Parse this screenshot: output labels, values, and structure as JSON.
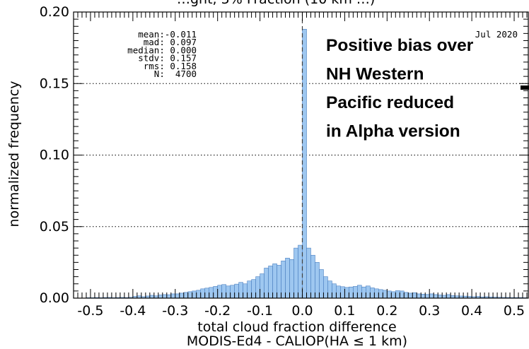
{
  "chart_data": {
    "type": "bar",
    "title_partial": "…ght, 5%  Fraction  (10  km …)",
    "date": "Jul 2020",
    "xlabel": "total cloud fraction difference",
    "xlabel2": "MODIS-Ed4 - CALIOP(HA ≤ 1 km)",
    "ylabel": "normalized frequency",
    "xlim": [
      -0.54,
      0.535
    ],
    "ylim": [
      0,
      0.2
    ],
    "grid": "horizontal dotted at 0.05, 0.10, 0.15",
    "bin_width": 0.01,
    "x_ticks": [
      {
        "v": -0.5,
        "label": "-0.5"
      },
      {
        "v": -0.4,
        "label": "-0.4"
      },
      {
        "v": -0.3,
        "label": "-0.3"
      },
      {
        "v": -0.2,
        "label": "-0.2"
      },
      {
        "v": -0.1,
        "label": "-0.1"
      },
      {
        "v": 0.0,
        "label": "0.0"
      },
      {
        "v": 0.1,
        "label": "0.1"
      },
      {
        "v": 0.2,
        "label": "0.2"
      },
      {
        "v": 0.3,
        "label": "0.3"
      },
      {
        "v": 0.4,
        "label": "0.4"
      },
      {
        "v": 0.5,
        "label": "0.5"
      }
    ],
    "y_ticks": [
      {
        "v": 0.0,
        "label": "0.00"
      },
      {
        "v": 0.05,
        "label": "0.05"
      },
      {
        "v": 0.1,
        "label": "0.10"
      },
      {
        "v": 0.15,
        "label": "0.15"
      },
      {
        "v": 0.2,
        "label": "0.20"
      }
    ],
    "stats": [
      "   mean:-0.011",
      "    mad: 0.097",
      " median: 0.000",
      "   stdv: 0.157",
      "    rms: 0.158",
      "      N:  4700"
    ],
    "annotation": [
      "Positive bias over",
      "NH Western",
      "Pacific reduced",
      "in Alpha version"
    ],
    "bin_centers": [
      -0.505,
      -0.495,
      -0.485,
      -0.475,
      -0.465,
      -0.455,
      -0.445,
      -0.435,
      -0.425,
      -0.415,
      -0.405,
      -0.395,
      -0.385,
      -0.375,
      -0.365,
      -0.355,
      -0.345,
      -0.335,
      -0.325,
      -0.315,
      -0.305,
      -0.295,
      -0.285,
      -0.275,
      -0.265,
      -0.255,
      -0.245,
      -0.235,
      -0.225,
      -0.215,
      -0.205,
      -0.195,
      -0.185,
      -0.175,
      -0.165,
      -0.155,
      -0.145,
      -0.135,
      -0.125,
      -0.115,
      -0.105,
      -0.095,
      -0.085,
      -0.075,
      -0.065,
      -0.055,
      -0.045,
      -0.035,
      -0.025,
      -0.015,
      -0.005,
      0.005,
      0.015,
      0.025,
      0.035,
      0.045,
      0.055,
      0.065,
      0.075,
      0.085,
      0.095,
      0.105,
      0.115,
      0.125,
      0.135,
      0.145,
      0.155,
      0.165,
      0.175,
      0.185,
      0.195,
      0.205,
      0.215,
      0.225,
      0.235,
      0.245,
      0.255,
      0.265,
      0.275,
      0.285,
      0.295,
      0.305,
      0.315,
      0.325,
      0.335,
      0.345,
      0.355,
      0.365,
      0.375,
      0.385,
      0.395,
      0.405,
      0.415,
      0.425,
      0.435,
      0.445,
      0.455,
      0.465,
      0.475,
      0.485,
      0.495,
      0.505,
      0.515,
      0.525
    ],
    "values": [
      0.0003,
      0.0003,
      0.0004,
      0.0003,
      0.0004,
      0.0005,
      0.0003,
      0.0004,
      0.0005,
      0.0004,
      0.0006,
      0.0012,
      0.0016,
      0.001,
      0.0015,
      0.002,
      0.0016,
      0.0022,
      0.0025,
      0.0024,
      0.003,
      0.003,
      0.0035,
      0.004,
      0.0045,
      0.005,
      0.0055,
      0.0065,
      0.007,
      0.0075,
      0.0082,
      0.009,
      0.0095,
      0.0085,
      0.009,
      0.0098,
      0.011,
      0.01,
      0.012,
      0.013,
      0.015,
      0.017,
      0.021,
      0.0225,
      0.024,
      0.023,
      0.026,
      0.028,
      0.027,
      0.035,
      0.037,
      0.188,
      0.035,
      0.03,
      0.025,
      0.02,
      0.015,
      0.012,
      0.01,
      0.0085,
      0.008,
      0.0075,
      0.0078,
      0.0082,
      0.009,
      0.0078,
      0.0085,
      0.0072,
      0.0065,
      0.006,
      0.0055,
      0.005,
      0.0045,
      0.0052,
      0.005,
      0.004,
      0.0035,
      0.0038,
      0.003,
      0.0028,
      0.0026,
      0.003,
      0.0025,
      0.0022,
      0.002,
      0.0025,
      0.0018,
      0.0016,
      0.0015,
      0.0014,
      0.0012,
      0.001,
      0.0012,
      0.0008,
      0.001,
      0.0008,
      0.0007,
      0.0006,
      0.0005,
      0.0005,
      0.0004,
      0.0004,
      0.0004,
      0.0003
    ],
    "colors": {
      "bar": "#9ec7f0",
      "bar_edge": "#4a7fc0",
      "grid": "#000000",
      "median_line": "#404040"
    }
  }
}
